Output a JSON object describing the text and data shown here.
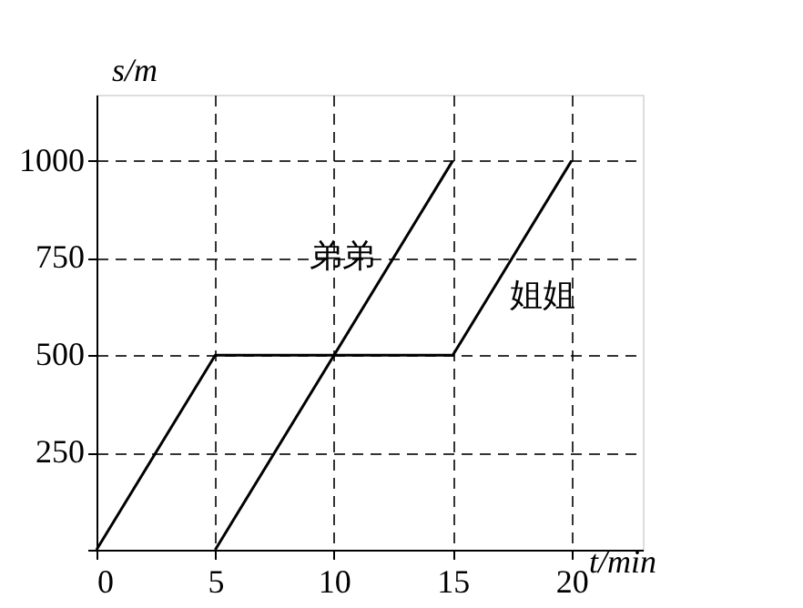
{
  "chart_data": {
    "type": "line",
    "xlabel": "t/min",
    "ylabel": "s/m",
    "series": [
      {
        "name": "姐姐",
        "color": "#000000",
        "x": [
          0,
          5,
          15,
          20
        ],
        "values": [
          0,
          500,
          500,
          1000
        ]
      },
      {
        "name": "弟弟",
        "color": "#000000",
        "x": [
          5,
          15
        ],
        "values": [
          0,
          1000
        ]
      }
    ],
    "xlim": [
      0,
      23
    ],
    "ylim": [
      0,
      1170
    ],
    "xticks": [
      0,
      5,
      10,
      15,
      20
    ],
    "yticks": [
      {
        "value": 0,
        "label": null
      },
      250,
      500,
      750,
      1000
    ],
    "grid": true,
    "line_style": "solid",
    "marker": "none"
  }
}
